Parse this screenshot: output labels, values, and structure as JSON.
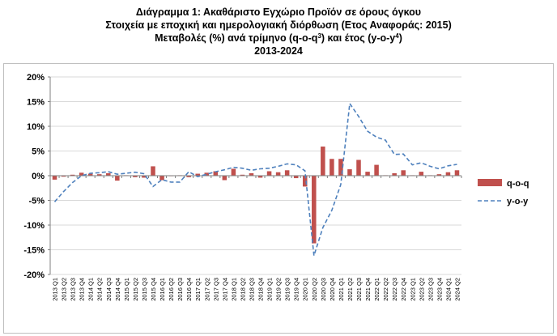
{
  "title": {
    "line1": "Διάγραμμα 1: Ακαθάριστο Εγχώριο Προϊόν σε όρους όγκου",
    "line2": "Στοιχεία με εποχική και ημερολογιακή διόρθωση (Ετος Αναφοράς: 2015)",
    "line3_a": "Μεταβολές (%) ανά τρίμηνο (q-o-q",
    "line3_sup1": "3",
    "line3_b": ") και έτος (y-o-y",
    "line3_sup2": "4",
    "line3_c": ")",
    "line4": "2013-2024"
  },
  "chart_data": {
    "type": "bar",
    "ylim": [
      -20,
      20
    ],
    "yticks": [
      -20,
      -15,
      -10,
      -5,
      0,
      5,
      10,
      15,
      20
    ],
    "ytick_suffix": "%",
    "grid": true,
    "legend_position": "right",
    "categories": [
      "2013 Q1",
      "2013 Q2",
      "2013 Q3",
      "2013 Q4",
      "2014 Q1",
      "2014 Q2",
      "2014 Q3",
      "2014 Q4",
      "2015 Q1",
      "2015 Q2",
      "2015 Q3",
      "2015 Q4",
      "2016 Q1",
      "2016 Q2",
      "2016 Q3",
      "2016 Q4",
      "2017 Q1",
      "2017 Q2",
      "2017 Q3",
      "2017 Q4",
      "2018 Q1",
      "2018 Q2",
      "2018 Q3",
      "2018 Q4",
      "2019 Q1",
      "2019 Q2",
      "2019 Q3",
      "2019 Q4",
      "2020 Q1",
      "2020 Q2",
      "2020 Q3",
      "2020 Q4",
      "2021 Q1",
      "2021 Q2",
      "2021 Q3",
      "2021 Q4",
      "2022 Q1",
      "2022 Q2",
      "2022 Q3",
      "2022 Q4",
      "2023 Q1",
      "2023 Q2",
      "2023 Q3",
      "2023 Q4",
      "2024 Q1",
      "2024 Q2"
    ],
    "series": [
      {
        "name": "q-o-q",
        "kind": "bar",
        "color": "#c0504d",
        "values": [
          -0.8,
          -0.2,
          0.2,
          0.6,
          0.4,
          0.3,
          0.5,
          -1.0,
          0.1,
          -0.3,
          -0.4,
          1.9,
          -0.9,
          -0.1,
          0.1,
          -0.3,
          0.4,
          0.6,
          0.9,
          -0.9,
          1.4,
          0.2,
          0.5,
          -0.4,
          0.9,
          0.7,
          1.1,
          -0.5,
          -2.2,
          -13.7,
          5.9,
          3.4,
          3.4,
          1.3,
          3.2,
          0.8,
          2.2,
          0.1,
          0.5,
          1.1,
          0.1,
          0.8,
          0.1,
          0.3,
          0.7,
          1.1
        ]
      },
      {
        "name": "y-o-y",
        "kind": "line",
        "dash": true,
        "color": "#4f81bd",
        "values": [
          -5.3,
          -3.2,
          -1.4,
          0.0,
          0.5,
          0.6,
          0.8,
          0.3,
          0.5,
          0.7,
          0.4,
          -2.2,
          -0.8,
          -1.3,
          -1.3,
          0.8,
          -0.2,
          0.3,
          0.8,
          1.2,
          1.7,
          1.5,
          1.1,
          1.4,
          1.5,
          1.9,
          2.4,
          2.2,
          1.0,
          -16.2,
          -10.5,
          -7.0,
          -1.8,
          14.6,
          12.0,
          9.0,
          7.8,
          7.2,
          4.3,
          4.4,
          2.2,
          2.6,
          1.9,
          1.4,
          2.0,
          2.3
        ]
      }
    ]
  }
}
